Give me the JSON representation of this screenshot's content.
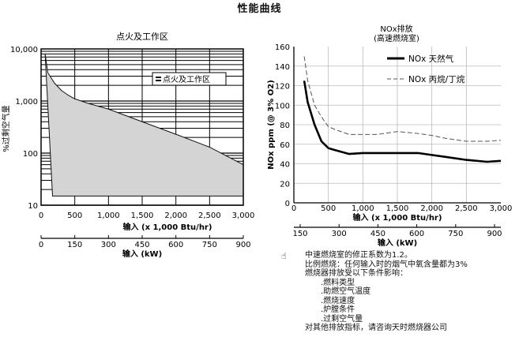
{
  "page_title": "性能曲线",
  "chart_data": [
    {
      "type": "area",
      "title": "点火及工作区",
      "xlabel": "输入 (x 1,000 Btu/hr)",
      "x2label": "输入 (kW)",
      "ylabel": "%过剩空气量",
      "yscale": "log",
      "xlim": [
        0,
        3000
      ],
      "ylim": [
        10,
        10000
      ],
      "x_ticks": [
        "0",
        "500",
        "1,000",
        "1,500",
        "2,000",
        "2,500",
        "3,000"
      ],
      "y_ticks": [
        "10",
        "100",
        "1,000",
        "10,000"
      ],
      "x2_ticks": [
        "0",
        "150",
        "300",
        "450",
        "600",
        "750",
        "900"
      ],
      "legend": "点火及工作区",
      "legend_position": "top-right",
      "region_upper": {
        "x": [
          60,
          100,
          200,
          300,
          400,
          500,
          700,
          1000,
          1500,
          2000,
          2500,
          3000
        ],
        "y": [
          8000,
          3500,
          2200,
          1600,
          1300,
          1100,
          900,
          700,
          400,
          230,
          130,
          60
        ]
      },
      "region_lower": {
        "x": [
          60,
          170,
          250
        ],
        "y": [
          8000,
          15,
          15
        ]
      }
    },
    {
      "type": "line",
      "title": "NOx排放",
      "subtitle": "(高速燃烧室)",
      "xlabel": "输入 (x 1,000 Btu/hr)",
      "x2label": "输入 (kW)",
      "ylabel": "NOx ppm (@ 3% O2)",
      "xlim": [
        0,
        3000
      ],
      "ylim": [
        0,
        160
      ],
      "x_ticks": [
        "0",
        "500",
        "1,000",
        "1,500",
        "2,000",
        "2,500",
        "3,000"
      ],
      "y_ticks": [
        "0",
        "20",
        "40",
        "60",
        "80",
        "100",
        "120",
        "140",
        "160"
      ],
      "x2_ticks": [
        "150",
        "300",
        "450",
        "600",
        "750",
        "900"
      ],
      "legend_position": "top-right",
      "series": [
        {
          "name": "NOx 天然气",
          "x": [
            150,
            200,
            300,
            400,
            500,
            600,
            800,
            1000,
            1200,
            1500,
            1800,
            2000,
            2200,
            2500,
            2800,
            3000
          ],
          "y": [
            125,
            103,
            80,
            63,
            56,
            54,
            50,
            51,
            51,
            51,
            51,
            49,
            47,
            44,
            42,
            43
          ]
        },
        {
          "name": "NOx 丙烷/丁烷",
          "x": [
            150,
            200,
            300,
            400,
            500,
            600,
            800,
            1000,
            1200,
            1500,
            1800,
            2000,
            2200,
            2500,
            2800,
            3000
          ],
          "y": [
            150,
            125,
            100,
            88,
            78,
            75,
            70,
            70,
            70,
            73,
            71,
            69,
            66,
            63,
            63,
            64
          ]
        }
      ]
    }
  ],
  "note": {
    "icon": "hand-icon",
    "lines": [
      "中速燃烧室的修正系数为1.2。",
      "比例燃烧：任何输入时的烟气中氧含量都为3%",
      "燃烧器排放受以下条件影响："
    ],
    "items": [
      ".燃料类型",
      ".助燃空气温度",
      ".燃烧速度",
      ".炉膛条件",
      ".过剩空气量"
    ],
    "footer": "对其他排放指标，请咨询天时燃烧器公司"
  }
}
